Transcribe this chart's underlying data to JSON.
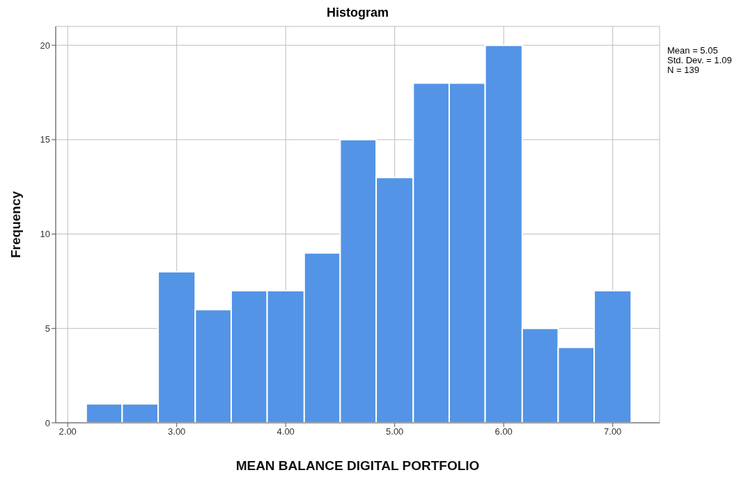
{
  "chart_data": {
    "type": "histogram",
    "title": "Histogram",
    "xlabel": "MEAN BALANCE DIGITAL PORTFOLIO",
    "ylabel": "Frequency",
    "bins": [
      2.17,
      2.5,
      2.83,
      3.17,
      3.5,
      3.83,
      4.17,
      4.5,
      4.83,
      5.17,
      5.5,
      5.83,
      6.17,
      6.5,
      6.83,
      7.17
    ],
    "values": [
      1,
      1,
      8,
      6,
      7,
      7,
      9,
      15,
      13,
      18,
      18,
      20,
      5,
      4,
      7
    ],
    "color": "#5394e6",
    "xlim": [
      1.89,
      7.43
    ],
    "xticks": [
      {
        "value": 2,
        "label": "2.00"
      },
      {
        "value": 3,
        "label": "3.00"
      },
      {
        "value": 4,
        "label": "4.00"
      },
      {
        "value": 5,
        "label": "5.00"
      },
      {
        "value": 6,
        "label": "6.00"
      },
      {
        "value": 7,
        "label": "7.00"
      }
    ],
    "ylim": [
      0,
      21
    ],
    "yticks": [
      0,
      5,
      10,
      15,
      20
    ],
    "grid": true,
    "annotations": [
      "Mean = 5.05",
      "Std. Dev. = 1.09",
      "N = 139"
    ]
  }
}
